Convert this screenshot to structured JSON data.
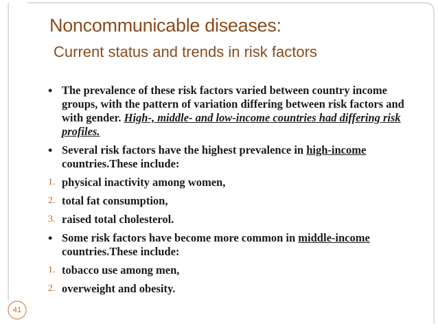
{
  "title": "Noncommunicable diseases:",
  "subtitle": "Current status and trends in risk factors",
  "items": [
    {
      "marker": "•",
      "parts": [
        "The prevalence of these risk factors varied between country income groups, with the pattern of variation differing between risk factors and with gender. ",
        "High-, middle- and low-income countries had differing risk profiles."
      ]
    },
    {
      "marker": "•",
      "parts": [
        "Several risk factors have the highest prevalence in ",
        "high-income ",
        "countries.These include:"
      ]
    },
    {
      "marker": "1.",
      "parts": [
        "physical inactivity among women,"
      ]
    },
    {
      "marker": "2.",
      "parts": [
        "total fat consumption,"
      ]
    },
    {
      "marker": "3.",
      "parts": [
        "raised total cholesterol."
      ]
    },
    {
      "marker": "•",
      "parts": [
        "Some risk factors have become more common in ",
        "middle-income",
        " countries.These include:"
      ]
    },
    {
      "marker": "1.",
      "parts": [
        "tobacco use among men,"
      ]
    },
    {
      "marker": "2.",
      "parts": [
        "overweight and obesity."
      ]
    }
  ],
  "page_number": "41"
}
